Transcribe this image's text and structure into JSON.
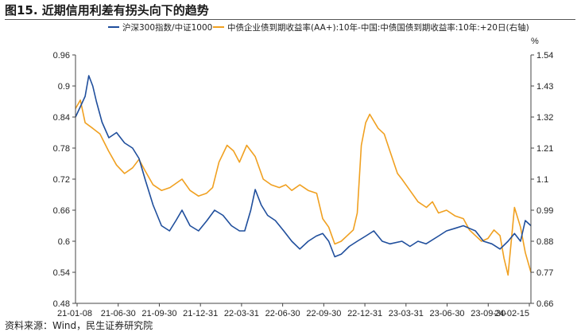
{
  "title": "图15. 近期信用利差有拐头向下的趋势",
  "footer": "资料来源：Wind，民生证券研究院",
  "colors": {
    "series1": "#1f4e9c",
    "series2": "#f0a020",
    "axis": "#444444"
  },
  "chart_data": {
    "type": "line",
    "legend_placement": "top",
    "grid": false,
    "left_axis": {
      "min": 0.48,
      "max": 0.96,
      "ticks": [
        "0.96",
        "0.9",
        "0.84",
        "0.78",
        "0.72",
        "0.66",
        "0.6",
        "0.54",
        "0.48"
      ]
    },
    "right_axis": {
      "unit": "%",
      "min": 0.66,
      "max": 1.54,
      "ticks": [
        "1.54",
        "1.43",
        "1.32",
        "1.21",
        "1.1",
        "0.99",
        "0.88",
        "0.77",
        "0.66"
      ]
    },
    "x_ticks": [
      "21-01-08",
      "21-06-30",
      "21-09-30",
      "21-12-31",
      "22-03-31",
      "22-06-30",
      "22-09-30",
      "22-12-31",
      "23-03-31",
      "23-06-30",
      "23-09-30",
      "24-02-15"
    ],
    "series": [
      {
        "name": "沪深300指数/中证1000",
        "axis": "left",
        "points": [
          [
            "2021-01-08",
            0.84
          ],
          [
            "2021-01-20",
            0.86
          ],
          [
            "2021-02-01",
            0.88
          ],
          [
            "2021-02-10",
            0.92
          ],
          [
            "2021-02-20",
            0.9
          ],
          [
            "2021-03-01",
            0.87
          ],
          [
            "2021-03-15",
            0.83
          ],
          [
            "2021-04-01",
            0.8
          ],
          [
            "2021-04-20",
            0.81
          ],
          [
            "2021-05-10",
            0.79
          ],
          [
            "2021-05-30",
            0.78
          ],
          [
            "2021-06-15",
            0.76
          ],
          [
            "2021-06-30",
            0.72
          ],
          [
            "2021-07-20",
            0.67
          ],
          [
            "2021-08-10",
            0.63
          ],
          [
            "2021-08-30",
            0.62
          ],
          [
            "2021-09-15",
            0.64
          ],
          [
            "2021-09-30",
            0.66
          ],
          [
            "2021-10-20",
            0.63
          ],
          [
            "2021-11-10",
            0.62
          ],
          [
            "2021-12-01",
            0.64
          ],
          [
            "2021-12-20",
            0.66
          ],
          [
            "2022-01-10",
            0.65
          ],
          [
            "2022-01-31",
            0.63
          ],
          [
            "2022-02-20",
            0.62
          ],
          [
            "2022-03-05",
            0.62
          ],
          [
            "2022-03-20",
            0.66
          ],
          [
            "2022-03-31",
            0.7
          ],
          [
            "2022-04-15",
            0.67
          ],
          [
            "2022-05-01",
            0.65
          ],
          [
            "2022-05-20",
            0.64
          ],
          [
            "2022-06-10",
            0.62
          ],
          [
            "2022-06-30",
            0.6
          ],
          [
            "2022-07-20",
            0.585
          ],
          [
            "2022-08-10",
            0.6
          ],
          [
            "2022-08-30",
            0.61
          ],
          [
            "2022-09-15",
            0.615
          ],
          [
            "2022-09-30",
            0.6
          ],
          [
            "2022-10-15",
            0.57
          ],
          [
            "2022-10-31",
            0.575
          ],
          [
            "2022-11-20",
            0.59
          ],
          [
            "2022-12-10",
            0.6
          ],
          [
            "2022-12-31",
            0.61
          ],
          [
            "2023-01-20",
            0.62
          ],
          [
            "2023-02-10",
            0.6
          ],
          [
            "2023-03-01",
            0.595
          ],
          [
            "2023-03-31",
            0.6
          ],
          [
            "2023-04-20",
            0.59
          ],
          [
            "2023-05-10",
            0.6
          ],
          [
            "2023-05-30",
            0.595
          ],
          [
            "2023-06-30",
            0.61
          ],
          [
            "2023-07-20",
            0.62
          ],
          [
            "2023-08-10",
            0.625
          ],
          [
            "2023-08-31",
            0.63
          ],
          [
            "2023-09-15",
            0.625
          ],
          [
            "2023-09-30",
            0.62
          ],
          [
            "2023-10-20",
            0.6
          ],
          [
            "2023-11-10",
            0.595
          ],
          [
            "2023-11-30",
            0.585
          ],
          [
            "2023-12-20",
            0.6
          ],
          [
            "2024-01-05",
            0.615
          ],
          [
            "2024-01-20",
            0.6
          ],
          [
            "2024-02-01",
            0.64
          ],
          [
            "2024-02-15",
            0.63
          ]
        ]
      },
      {
        "name": "中债企业债到期收益率(AA+):10年-中国:中债国债到期收益率:10年:+20日(右轴)",
        "axis": "right",
        "points": [
          [
            "2021-01-08",
            1.35
          ],
          [
            "2021-01-20",
            1.38
          ],
          [
            "2021-02-01",
            1.3
          ],
          [
            "2021-02-20",
            1.28
          ],
          [
            "2021-03-10",
            1.26
          ],
          [
            "2021-03-31",
            1.2
          ],
          [
            "2021-04-20",
            1.15
          ],
          [
            "2021-05-10",
            1.12
          ],
          [
            "2021-05-30",
            1.14
          ],
          [
            "2021-06-15",
            1.17
          ],
          [
            "2021-06-30",
            1.13
          ],
          [
            "2021-07-20",
            1.08
          ],
          [
            "2021-08-10",
            1.06
          ],
          [
            "2021-08-31",
            1.07
          ],
          [
            "2021-09-20",
            1.09
          ],
          [
            "2021-09-30",
            1.1
          ],
          [
            "2021-10-20",
            1.06
          ],
          [
            "2021-11-10",
            1.04
          ],
          [
            "2021-11-30",
            1.05
          ],
          [
            "2021-12-15",
            1.07
          ],
          [
            "2021-12-31",
            1.16
          ],
          [
            "2022-01-20",
            1.22
          ],
          [
            "2022-02-05",
            1.2
          ],
          [
            "2022-02-20",
            1.16
          ],
          [
            "2022-03-10",
            1.22
          ],
          [
            "2022-03-31",
            1.18
          ],
          [
            "2022-04-20",
            1.1
          ],
          [
            "2022-05-10",
            1.08
          ],
          [
            "2022-05-30",
            1.07
          ],
          [
            "2022-06-15",
            1.08
          ],
          [
            "2022-06-30",
            1.06
          ],
          [
            "2022-07-20",
            1.08
          ],
          [
            "2022-08-10",
            1.06
          ],
          [
            "2022-08-31",
            1.05
          ],
          [
            "2022-09-15",
            0.96
          ],
          [
            "2022-09-30",
            0.93
          ],
          [
            "2022-10-15",
            0.87
          ],
          [
            "2022-10-31",
            0.88
          ],
          [
            "2022-11-15",
            0.9
          ],
          [
            "2022-11-30",
            0.92
          ],
          [
            "2022-12-10",
            0.98
          ],
          [
            "2022-12-20",
            1.22
          ],
          [
            "2022-12-31",
            1.3
          ],
          [
            "2023-01-10",
            1.33
          ],
          [
            "2023-01-31",
            1.28
          ],
          [
            "2023-02-15",
            1.26
          ],
          [
            "2023-03-01",
            1.2
          ],
          [
            "2023-03-20",
            1.12
          ],
          [
            "2023-03-31",
            1.1
          ],
          [
            "2023-04-20",
            1.06
          ],
          [
            "2023-05-10",
            1.02
          ],
          [
            "2023-05-31",
            1.0
          ],
          [
            "2023-06-15",
            1.02
          ],
          [
            "2023-06-30",
            0.98
          ],
          [
            "2023-07-20",
            0.99
          ],
          [
            "2023-08-10",
            0.97
          ],
          [
            "2023-08-31",
            0.96
          ],
          [
            "2023-09-15",
            0.92
          ],
          [
            "2023-09-30",
            0.9
          ],
          [
            "2023-10-15",
            0.88
          ],
          [
            "2023-10-31",
            0.89
          ],
          [
            "2023-11-15",
            0.92
          ],
          [
            "2023-11-30",
            0.9
          ],
          [
            "2023-12-10",
            0.82
          ],
          [
            "2023-12-20",
            0.76
          ],
          [
            "2024-01-05",
            1.0
          ],
          [
            "2024-01-20",
            0.93
          ],
          [
            "2024-02-01",
            0.84
          ],
          [
            "2024-02-15",
            0.77
          ]
        ]
      }
    ]
  }
}
